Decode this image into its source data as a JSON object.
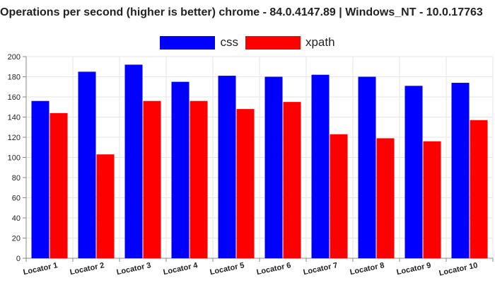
{
  "title": "Operations per second (higher is better) chrome - 84.0.4147.89 | Windows_NT - 10.0.17763",
  "colors": {
    "css": "#0000ff",
    "xpath": "#ff0000",
    "grid": "#e6e6e6",
    "axis": "#888888"
  },
  "chart_data": {
    "type": "bar",
    "title": "Operations per second (higher is better) chrome - 84.0.4147.89 | Windows_NT - 10.0.17763",
    "xlabel": "",
    "ylabel": "",
    "ylim": [
      0,
      200
    ],
    "yticks": [
      0,
      20,
      40,
      60,
      80,
      100,
      120,
      140,
      160,
      180,
      200
    ],
    "grid": true,
    "legend_position": "top-center",
    "categories": [
      "Locator 1",
      "Locator 2",
      "Locator 3",
      "Locator 4",
      "Locator 5",
      "Locator 6",
      "Locator 7",
      "Locator 8",
      "Locator 9",
      "Locator 10"
    ],
    "series": [
      {
        "name": "css",
        "color": "#0000ff",
        "values": [
          156,
          185,
          192,
          175,
          181,
          180,
          182,
          180,
          171,
          174
        ]
      },
      {
        "name": "xpath",
        "color": "#ff0000",
        "values": [
          144,
          103,
          156,
          156,
          148,
          155,
          123,
          119,
          116,
          137
        ]
      }
    ]
  }
}
